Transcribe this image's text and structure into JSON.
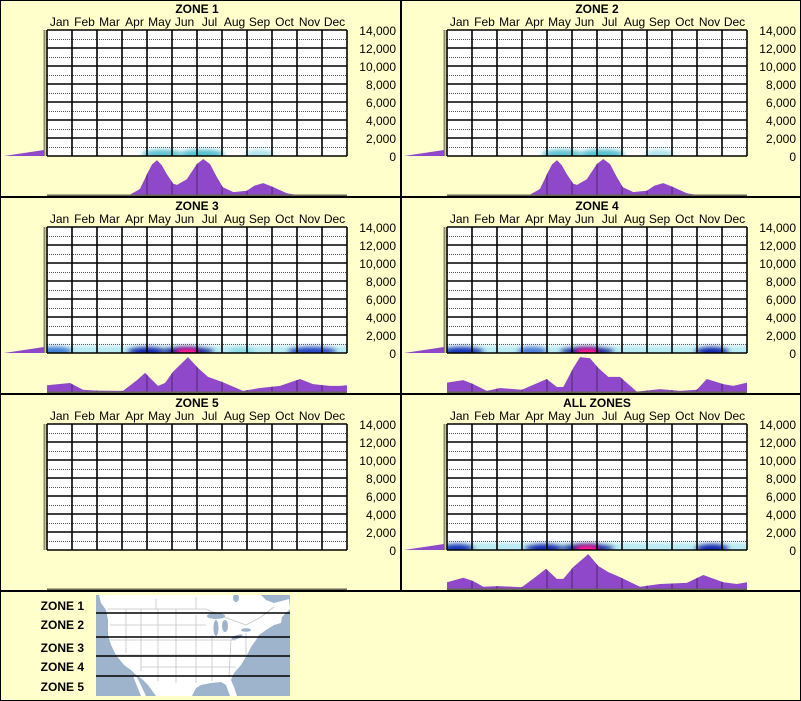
{
  "months": [
    "Jan",
    "Feb",
    "Mar",
    "Apr",
    "May",
    "Jun",
    "Jul",
    "Aug",
    "Sep",
    "Oct",
    "Nov",
    "Dec"
  ],
  "y_ticks": [
    "14,000",
    "12,000",
    "10,000",
    "8,000",
    "6,000",
    "4,000",
    "2,000",
    "0"
  ],
  "colors": {
    "background": "#ffffcc",
    "purple": "#8e48c9",
    "purple_line": "#5a2d7a",
    "grid": "#000000",
    "axis": "#8c8c70",
    "baseline": "#66664f",
    "water": "#9db4cc",
    "land": "#ffffff",
    "state_lines": "#c4c4c4"
  },
  "legend": {
    "zones": [
      "ZONE 1",
      "ZONE 2",
      "ZONE 3",
      "ZONE 4",
      "ZONE 5"
    ]
  },
  "chart_data": [
    {
      "title": "ZONE 1",
      "type": "heatmap",
      "categories": [
        "Jan",
        "Feb",
        "Mar",
        "Apr",
        "May",
        "Jun",
        "Jul",
        "Aug",
        "Sep",
        "Oct",
        "Nov",
        "Dec"
      ],
      "xlabel": "",
      "ylabel": "",
      "ylim": [
        0,
        14000
      ],
      "yticks": [
        0,
        2000,
        4000,
        6000,
        8000,
        10000,
        12000,
        14000
      ],
      "grid": true,
      "elevation_histogram": true,
      "monthly_distribution": [
        [
          0,
          0
        ],
        [
          3.3,
          0
        ],
        [
          3.72,
          17
        ],
        [
          4.0,
          58
        ],
        [
          4.2,
          85
        ],
        [
          4.4,
          97
        ],
        [
          4.6,
          82
        ],
        [
          4.79,
          58
        ],
        [
          5.05,
          31
        ],
        [
          5.2,
          28
        ],
        [
          5.59,
          44
        ],
        [
          5.99,
          86
        ],
        [
          6.25,
          100
        ],
        [
          6.52,
          86
        ],
        [
          6.79,
          50
        ],
        [
          7.03,
          22
        ],
        [
          7.45,
          8
        ],
        [
          7.99,
          12
        ],
        [
          8.3,
          26
        ],
        [
          8.65,
          33
        ],
        [
          9.05,
          22
        ],
        [
          9.59,
          5
        ],
        [
          10.0,
          0
        ],
        [
          12,
          0
        ]
      ],
      "heatmap": {
        "base": null,
        "blobs": [
          {
            "x": 4.6,
            "w": 1.6,
            "color": "#3fb8c8",
            "opacity": 0.85
          },
          {
            "x": 6.2,
            "w": 1.8,
            "color": "#3fb8c8",
            "opacity": 0.9
          },
          {
            "x": 8.5,
            "w": 1.2,
            "color": "#7fd4e0",
            "opacity": 0.6
          }
        ],
        "hot": null
      }
    },
    {
      "title": "ZONE 2",
      "type": "heatmap",
      "categories": [
        "Jan",
        "Feb",
        "Mar",
        "Apr",
        "May",
        "Jun",
        "Jul",
        "Aug",
        "Sep",
        "Oct",
        "Nov",
        "Dec"
      ],
      "xlabel": "",
      "ylabel": "",
      "ylim": [
        0,
        14000
      ],
      "yticks": [
        0,
        2000,
        4000,
        6000,
        8000,
        10000,
        12000,
        14000
      ],
      "grid": true,
      "elevation_histogram": true,
      "monthly_distribution": [
        [
          0,
          0
        ],
        [
          3.3,
          0
        ],
        [
          3.72,
          17
        ],
        [
          4.0,
          58
        ],
        [
          4.2,
          85
        ],
        [
          4.4,
          97
        ],
        [
          4.6,
          82
        ],
        [
          4.79,
          58
        ],
        [
          5.05,
          31
        ],
        [
          5.2,
          28
        ],
        [
          5.59,
          44
        ],
        [
          5.99,
          86
        ],
        [
          6.25,
          100
        ],
        [
          6.52,
          86
        ],
        [
          6.79,
          50
        ],
        [
          7.03,
          22
        ],
        [
          7.45,
          8
        ],
        [
          7.99,
          12
        ],
        [
          8.3,
          26
        ],
        [
          8.65,
          33
        ],
        [
          9.05,
          22
        ],
        [
          9.59,
          5
        ],
        [
          10.0,
          0
        ],
        [
          12,
          0
        ]
      ],
      "heatmap": {
        "base": null,
        "blobs": [
          {
            "x": 4.6,
            "w": 1.6,
            "color": "#3fb8c8",
            "opacity": 0.85
          },
          {
            "x": 6.2,
            "w": 1.8,
            "color": "#3fb8c8",
            "opacity": 0.9
          },
          {
            "x": 8.5,
            "w": 1.2,
            "color": "#7fd4e0",
            "opacity": 0.6
          }
        ],
        "hot": null
      }
    },
    {
      "title": "ZONE 3",
      "type": "heatmap",
      "categories": [
        "Jan",
        "Feb",
        "Mar",
        "Apr",
        "May",
        "Jun",
        "Jul",
        "Aug",
        "Sep",
        "Oct",
        "Nov",
        "Dec"
      ],
      "xlabel": "",
      "ylabel": "",
      "ylim": [
        0,
        14000
      ],
      "yticks": [
        0,
        2000,
        4000,
        6000,
        8000,
        10000,
        12000,
        14000
      ],
      "grid": true,
      "elevation_histogram": true,
      "monthly_distribution": [
        [
          0,
          19
        ],
        [
          0.92,
          25
        ],
        [
          1.44,
          6
        ],
        [
          2,
          4
        ],
        [
          3.04,
          3
        ],
        [
          3.6,
          33
        ],
        [
          3.92,
          53
        ],
        [
          4.44,
          17
        ],
        [
          4.72,
          25
        ],
        [
          5.04,
          56
        ],
        [
          5.64,
          97
        ],
        [
          6.04,
          67
        ],
        [
          6.44,
          42
        ],
        [
          7,
          28
        ],
        [
          7.84,
          3
        ],
        [
          8.52,
          11
        ],
        [
          9.32,
          17
        ],
        [
          10.12,
          36
        ],
        [
          10.64,
          22
        ],
        [
          11.32,
          17
        ],
        [
          11.72,
          17
        ],
        [
          12,
          19
        ]
      ],
      "heatmap": {
        "base": "#a8e6ee",
        "blobs": [
          {
            "x": 0.3,
            "w": 1.4,
            "color": "#2c6ad0",
            "opacity": 0.85
          },
          {
            "x": 4.0,
            "w": 1.6,
            "color": "#0a22b0",
            "opacity": 1
          },
          {
            "x": 5.6,
            "w": 2.2,
            "color": "#0010a0",
            "opacity": 1
          },
          {
            "x": 7.8,
            "w": 1.0,
            "color": "#7fd4e0",
            "opacity": 0.7
          },
          {
            "x": 10.6,
            "w": 2.0,
            "color": "#1a3cc0",
            "opacity": 0.95
          }
        ],
        "hot": {
          "x": 5.6,
          "w": 1.0,
          "color": "#ff1a8c"
        }
      }
    },
    {
      "title": "ZONE 4",
      "type": "heatmap",
      "categories": [
        "Jan",
        "Feb",
        "Mar",
        "Apr",
        "May",
        "Jun",
        "Jul",
        "Aug",
        "Sep",
        "Oct",
        "Nov",
        "Dec"
      ],
      "xlabel": "",
      "ylabel": "",
      "ylim": [
        0,
        14000
      ],
      "yticks": [
        0,
        2000,
        4000,
        6000,
        8000,
        10000,
        12000,
        14000
      ],
      "grid": true,
      "elevation_histogram": true,
      "monthly_distribution": [
        [
          0,
          26
        ],
        [
          0.65,
          33
        ],
        [
          1.05,
          22
        ],
        [
          1.59,
          3
        ],
        [
          2.12,
          11
        ],
        [
          2.99,
          6
        ],
        [
          3.99,
          36
        ],
        [
          4.39,
          14
        ],
        [
          4.65,
          14
        ],
        [
          5.05,
          67
        ],
        [
          5.32,
          97
        ],
        [
          5.72,
          94
        ],
        [
          6.05,
          67
        ],
        [
          6.45,
          42
        ],
        [
          6.92,
          42
        ],
        [
          7.59,
          1
        ],
        [
          8.52,
          8
        ],
        [
          9.32,
          3
        ],
        [
          9.99,
          6
        ],
        [
          10.39,
          36
        ],
        [
          11.05,
          22
        ],
        [
          11.45,
          17
        ],
        [
          12,
          26
        ]
      ],
      "heatmap": {
        "base": "#a8e6ee",
        "blobs": [
          {
            "x": 0.6,
            "w": 1.8,
            "color": "#1030b8",
            "opacity": 1
          },
          {
            "x": 3.4,
            "w": 1.2,
            "color": "#3060d0",
            "opacity": 0.8
          },
          {
            "x": 5.6,
            "w": 2.2,
            "color": "#0010a0",
            "opacity": 1
          },
          {
            "x": 10.6,
            "w": 1.4,
            "color": "#0a22b0",
            "opacity": 1
          }
        ],
        "hot": {
          "x": 5.6,
          "w": 1.0,
          "color": "#ff1a8c"
        }
      }
    },
    {
      "title": "ZONE 5",
      "type": "heatmap",
      "categories": [
        "Jan",
        "Feb",
        "Mar",
        "Apr",
        "May",
        "Jun",
        "Jul",
        "Aug",
        "Sep",
        "Oct",
        "Nov",
        "Dec"
      ],
      "xlabel": "",
      "ylabel": "",
      "ylim": [
        0,
        14000
      ],
      "yticks": [
        0,
        2000,
        4000,
        6000,
        8000,
        10000,
        12000,
        14000
      ],
      "grid": true,
      "elevation_histogram": false,
      "monthly_distribution": [],
      "heatmap": {
        "base": null,
        "blobs": [],
        "hot": null
      }
    },
    {
      "title": "ALL ZONES",
      "type": "heatmap",
      "categories": [
        "Jan",
        "Feb",
        "Mar",
        "Apr",
        "May",
        "Jun",
        "Jul",
        "Aug",
        "Sep",
        "Oct",
        "Nov",
        "Dec"
      ],
      "xlabel": "",
      "ylabel": "",
      "ylim": [
        0,
        14000
      ],
      "yticks": [
        0,
        2000,
        4000,
        6000,
        8000,
        10000,
        12000,
        14000
      ],
      "grid": true,
      "elevation_histogram": true,
      "monthly_distribution": [
        [
          0,
          19
        ],
        [
          0.65,
          31
        ],
        [
          1.05,
          22
        ],
        [
          1.45,
          6
        ],
        [
          2.05,
          8
        ],
        [
          2.99,
          5
        ],
        [
          3.59,
          36
        ],
        [
          3.96,
          56
        ],
        [
          4.39,
          28
        ],
        [
          4.65,
          28
        ],
        [
          5.05,
          61
        ],
        [
          5.65,
          97
        ],
        [
          6.05,
          64
        ],
        [
          6.45,
          47
        ],
        [
          6.92,
          33
        ],
        [
          7.72,
          6
        ],
        [
          8.52,
          14
        ],
        [
          9.59,
          17
        ],
        [
          10.25,
          39
        ],
        [
          11.05,
          19
        ],
        [
          11.59,
          14
        ],
        [
          12,
          19
        ]
      ],
      "heatmap": {
        "base": "#a8e6ee",
        "blobs": [
          {
            "x": 0.4,
            "w": 1.4,
            "color": "#1030b8",
            "opacity": 1
          },
          {
            "x": 3.9,
            "w": 1.6,
            "color": "#0a22b0",
            "opacity": 1
          },
          {
            "x": 5.6,
            "w": 2.2,
            "color": "#0010a0",
            "opacity": 1
          },
          {
            "x": 10.6,
            "w": 1.4,
            "color": "#0a22b0",
            "opacity": 1
          }
        ],
        "hot": {
          "x": 5.6,
          "w": 1.0,
          "color": "#ff1a8c"
        }
      }
    }
  ]
}
